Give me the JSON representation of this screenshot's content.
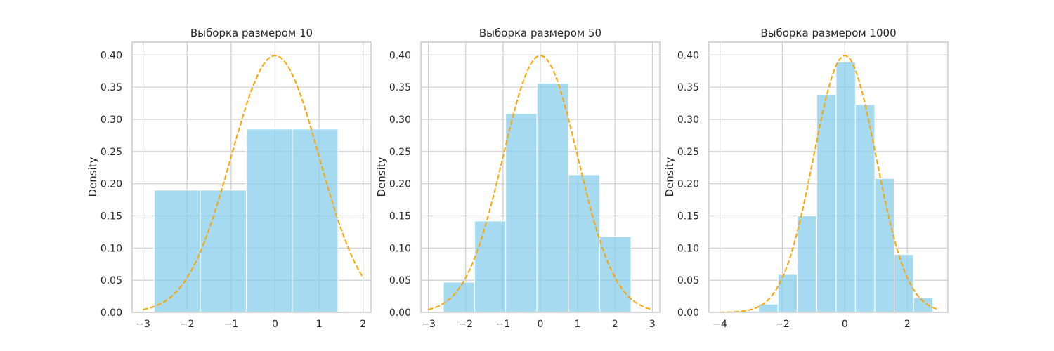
{
  "chart_data": [
    {
      "type": "bar",
      "title": "Выборка размером 10",
      "ylabel": "Density",
      "xlabel": "",
      "grid": true,
      "xlim": [
        -3.25,
        2.18
      ],
      "ylim": [
        0,
        0.42
      ],
      "xticks": [
        -3,
        -2,
        -1,
        0,
        1,
        2
      ],
      "xtick_labels": [
        "−3",
        "−2",
        "−1",
        "0",
        "1",
        "2"
      ],
      "yticks": [
        0.0,
        0.05,
        0.1,
        0.15,
        0.2,
        0.25,
        0.3,
        0.35,
        0.4
      ],
      "ytick_labels": [
        "0.00",
        "0.05",
        "0.10",
        "0.15",
        "0.20",
        "0.25",
        "0.30",
        "0.35",
        "0.40"
      ],
      "bins": [
        {
          "x0": -2.75,
          "x1": -1.7,
          "density": 0.19
        },
        {
          "x0": -1.7,
          "x1": -0.65,
          "density": 0.19
        },
        {
          "x0": -0.65,
          "x1": 0.39,
          "density": 0.285
        },
        {
          "x0": 0.39,
          "x1": 1.43,
          "density": 0.285
        }
      ],
      "pdf": {
        "type": "normal",
        "mean": 0,
        "std": 1,
        "x_range": [
          -3,
          2
        ]
      }
    },
    {
      "type": "bar",
      "title": "Выборка размером 50",
      "ylabel": "Density",
      "xlabel": "",
      "grid": true,
      "xlim": [
        -3.2,
        3.2
      ],
      "ylim": [
        0,
        0.42
      ],
      "xticks": [
        -3,
        -2,
        -1,
        0,
        1,
        2,
        3
      ],
      "xtick_labels": [
        "−3",
        "−2",
        "−1",
        "0",
        "1",
        "2",
        "3"
      ],
      "yticks": [
        0.0,
        0.05,
        0.1,
        0.15,
        0.2,
        0.25,
        0.3,
        0.35,
        0.4
      ],
      "ytick_labels": [
        "0.00",
        "0.05",
        "0.10",
        "0.15",
        "0.20",
        "0.25",
        "0.30",
        "0.35",
        "0.40"
      ],
      "bins": [
        {
          "x0": -2.6,
          "x1": -1.76,
          "density": 0.047
        },
        {
          "x0": -1.76,
          "x1": -0.93,
          "density": 0.142
        },
        {
          "x0": -0.93,
          "x1": -0.09,
          "density": 0.309
        },
        {
          "x0": -0.09,
          "x1": 0.75,
          "density": 0.356
        },
        {
          "x0": 0.75,
          "x1": 1.59,
          "density": 0.214
        },
        {
          "x0": 1.59,
          "x1": 2.43,
          "density": 0.118
        }
      ],
      "pdf": {
        "type": "normal",
        "mean": 0,
        "std": 1,
        "x_range": [
          -3,
          3
        ]
      }
    },
    {
      "type": "bar",
      "title": "Выборка размером 1000",
      "ylabel": "Density",
      "xlabel": "",
      "grid": true,
      "xlim": [
        -4.35,
        3.3
      ],
      "ylim": [
        0,
        0.42
      ],
      "xticks": [
        -4,
        -2,
        0,
        2
      ],
      "xtick_labels": [
        "−4",
        "−2",
        "0",
        "2"
      ],
      "yticks": [
        0.0,
        0.05,
        0.1,
        0.15,
        0.2,
        0.25,
        0.3,
        0.35,
        0.4
      ],
      "ytick_labels": [
        "0.00",
        "0.05",
        "0.10",
        "0.15",
        "0.20",
        "0.25",
        "0.30",
        "0.35",
        "0.40"
      ],
      "bins": [
        {
          "x0": -4.0,
          "x1": -3.38,
          "density": 0.001
        },
        {
          "x0": -3.38,
          "x1": -2.76,
          "density": 0.002
        },
        {
          "x0": -2.76,
          "x1": -2.14,
          "density": 0.013
        },
        {
          "x0": -2.14,
          "x1": -1.52,
          "density": 0.059
        },
        {
          "x0": -1.52,
          "x1": -0.9,
          "density": 0.15
        },
        {
          "x0": -0.9,
          "x1": -0.28,
          "density": 0.338
        },
        {
          "x0": -0.28,
          "x1": 0.34,
          "density": 0.389
        },
        {
          "x0": 0.34,
          "x1": 0.96,
          "density": 0.323
        },
        {
          "x0": 0.96,
          "x1": 1.58,
          "density": 0.208
        },
        {
          "x0": 1.58,
          "x1": 2.2,
          "density": 0.09
        },
        {
          "x0": 2.2,
          "x1": 2.82,
          "density": 0.023
        }
      ],
      "pdf": {
        "type": "normal",
        "mean": 0,
        "std": 1,
        "x_range": [
          -4,
          3
        ]
      }
    }
  ],
  "colors": {
    "bar_fill": "#87ceeb",
    "bar_edge": "#ffffff",
    "pdf_line": "#ffa500",
    "grid": "#cccccc",
    "axes_edge": "#cccccc",
    "text": "#262626"
  }
}
